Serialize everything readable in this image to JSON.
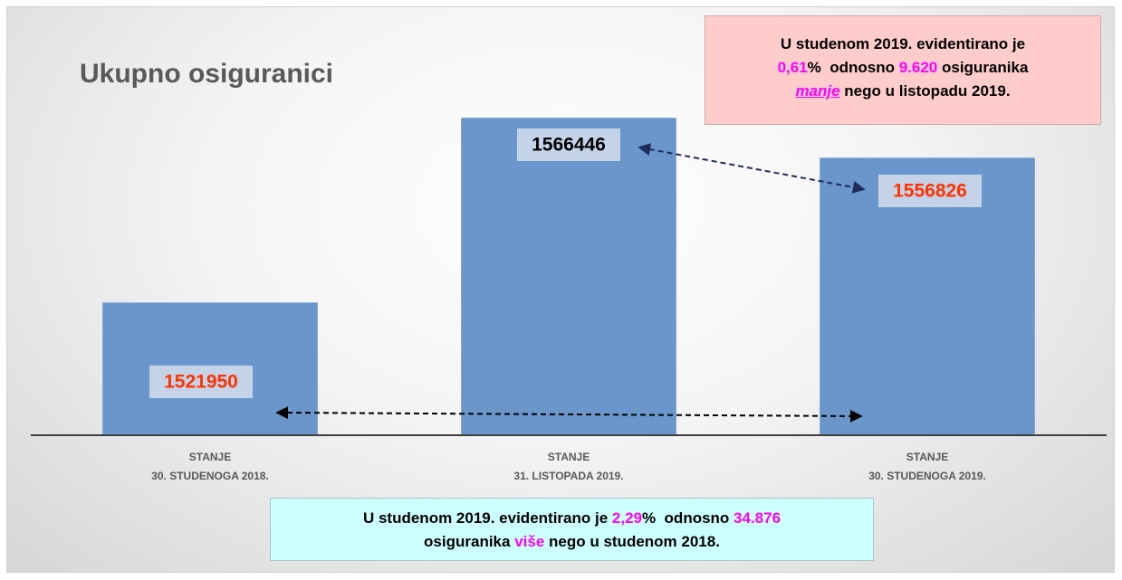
{
  "chart_data": {
    "type": "bar",
    "title": "Ukupno osiguranici",
    "categories": [
      [
        "STANJE",
        "30. STUDENOGA 2018."
      ],
      [
        "STANJE",
        "31. LISTOPADA 2019."
      ],
      [
        "STANJE",
        "30. STUDENOGA 2019."
      ]
    ],
    "values": [
      1521950,
      1566446,
      1556826
    ],
    "color": "#6a96cb",
    "value_label_colors": [
      "#ff3300",
      "#000000",
      "#ff3300"
    ],
    "value_label_background": "#c5d3e8",
    "ylim": [
      1490000,
      1580000
    ],
    "grid": false,
    "annotations": [
      {
        "background": "#ffcccc",
        "border": "#cfa8a8",
        "lines": [
          [
            {
              "text": "U studenom 2019. evidentirano je"
            }
          ],
          [
            {
              "text": "0,61",
              "color": "#ff00ff"
            },
            {
              "text": "%  odnosno "
            },
            {
              "text": "9.620",
              "color": "#ff00ff"
            },
            {
              "text": " osiguranika"
            }
          ],
          [
            {
              "text": "manje",
              "color": "#ff00ff",
              "italic": true,
              "underline": true
            },
            {
              "text": " nego u listopadu 2019."
            }
          ]
        ]
      },
      {
        "background": "#ccffff",
        "border": "#a8c8c8",
        "lines": [
          [
            {
              "text": "U studenom 2019. evidentirano je "
            },
            {
              "text": "2,29",
              "color": "#ff00ff"
            },
            {
              "text": "%  odnosno "
            },
            {
              "text": "34.876",
              "color": "#ff00ff"
            }
          ],
          [
            {
              "text": "osiguranika "
            },
            {
              "text": "više",
              "color": "#ff00ff"
            },
            {
              "text": " nego u studenom 2018."
            }
          ]
        ]
      }
    ]
  }
}
